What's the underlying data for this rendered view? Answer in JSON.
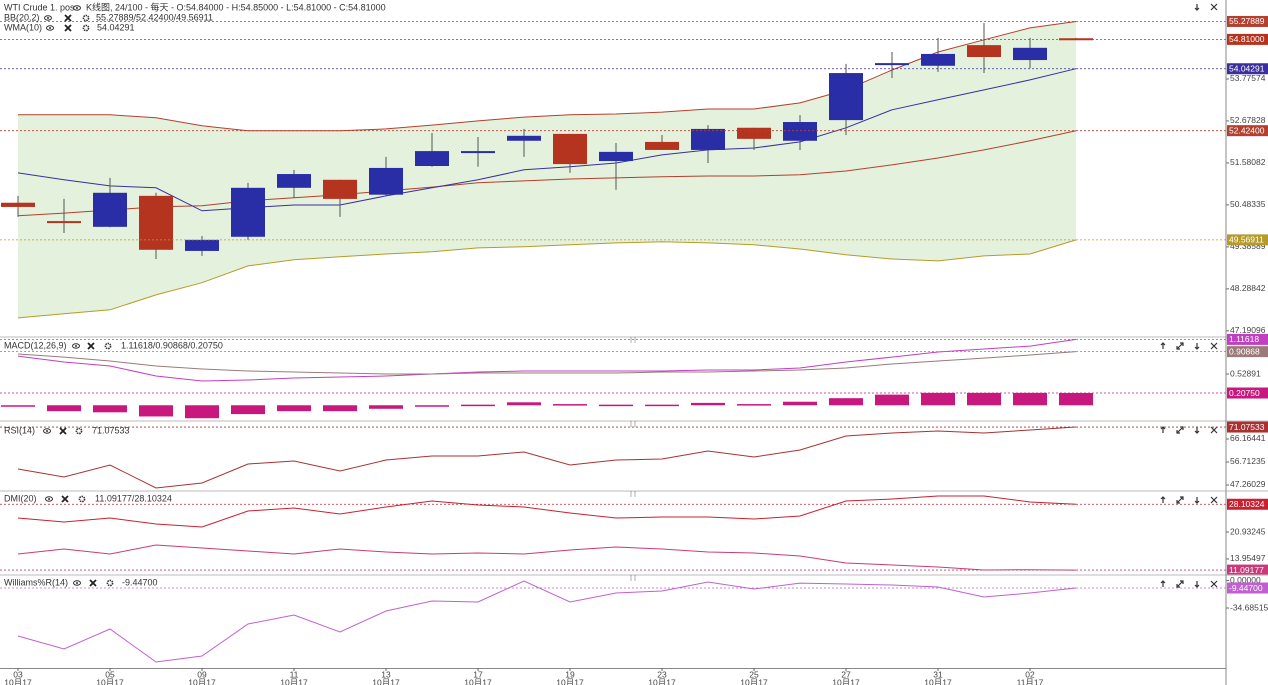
{
  "chart_data": [
    {
      "type": "candlestick",
      "title": "WTI Crude 1. pos",
      "subtitle": "K线图, 24/100 - 每天 - O:54.84000 - H:54.85000 - L:54.81000 - C:54.81000",
      "categories": [
        "03",
        null,
        "05",
        null,
        "09",
        null,
        "11",
        null,
        "13",
        null,
        "17",
        null,
        "19",
        null,
        "23",
        null,
        "25",
        null,
        "27",
        null,
        "31",
        null,
        "02",
        null
      ],
      "category_months": [
        "10月17",
        null,
        "10月17",
        null,
        "10月17",
        null,
        "10月17",
        null,
        "10月17",
        null,
        "10月17",
        null,
        "10月17",
        null,
        "10月17",
        null,
        "10月17",
        null,
        "10月17",
        null,
        "10月17",
        null,
        "11月17",
        null
      ],
      "open": [
        50.54,
        50.06,
        49.91,
        50.72,
        49.28,
        49.65,
        50.93,
        51.14,
        50.75,
        51.5,
        51.84,
        52.16,
        52.34,
        51.63,
        52.13,
        51.92,
        52.5,
        52.16,
        52.7,
        54.14,
        54.12,
        54.66,
        54.27,
        54.84
      ],
      "high": [
        50.72,
        50.64,
        51.19,
        50.8,
        49.67,
        51.06,
        51.4,
        51.14,
        51.74,
        52.36,
        52.26,
        52.47,
        52.34,
        52.1,
        52.31,
        52.57,
        52.5,
        52.83,
        54.17,
        54.48,
        54.85,
        55.24,
        54.85,
        54.85
      ],
      "low": [
        50.17,
        49.75,
        49.9,
        49.07,
        49.15,
        49.57,
        50.67,
        50.17,
        50.72,
        51.48,
        51.48,
        51.74,
        51.32,
        50.88,
        51.92,
        51.58,
        51.92,
        51.92,
        52.31,
        53.8,
        53.96,
        53.93,
        54.06,
        54.81
      ],
      "close": [
        50.43,
        50.02,
        50.8,
        49.31,
        49.57,
        50.93,
        51.29,
        50.64,
        51.45,
        51.89,
        51.89,
        52.29,
        51.55,
        51.87,
        51.92,
        52.47,
        52.21,
        52.65,
        53.93,
        54.19,
        54.43,
        54.35,
        54.59,
        54.81
      ],
      "close_label": "54.81000",
      "up_color": "#2a2ea6",
      "down_color": "#b5341f",
      "ylim": [
        47.03,
        55.84
      ],
      "yticks": [
        53.77574,
        52.67828,
        51.58082,
        50.48335,
        49.38589,
        48.28842,
        47.19096
      ],
      "indicators": [
        {
          "name": "BB(20,2)",
          "values_label": "55.27889/52.42400/49.56911",
          "color": "#a0702a",
          "fill": "#e4f1dc",
          "series": [
            {
              "color": "#b3402f",
              "last_label": "55.27889",
              "values": [
                52.84,
                52.84,
                52.84,
                52.76,
                52.55,
                52.42,
                52.42,
                52.42,
                52.47,
                52.57,
                52.68,
                52.78,
                52.84,
                52.86,
                52.91,
                52.99,
                52.99,
                53.15,
                53.49,
                54.01,
                54.48,
                54.8,
                55.11,
                55.27889
              ]
            },
            {
              "color": "#b3402f",
              "last_label": "52.42400",
              "values": [
                50.2,
                50.27,
                50.35,
                50.43,
                50.46,
                50.59,
                50.67,
                50.75,
                50.85,
                50.95,
                51.06,
                51.11,
                51.16,
                51.19,
                51.22,
                51.24,
                51.24,
                51.27,
                51.37,
                51.53,
                51.71,
                51.92,
                52.16,
                52.424
              ]
            },
            {
              "color": "#b59b2a",
              "last_label": "49.56911",
              "values": [
                47.53,
                47.64,
                47.74,
                48.13,
                48.45,
                48.89,
                49.05,
                49.13,
                49.2,
                49.26,
                49.36,
                49.39,
                49.44,
                49.49,
                49.52,
                49.49,
                49.44,
                49.33,
                49.18,
                49.07,
                49.02,
                49.15,
                49.2,
                49.56911
              ]
            }
          ]
        },
        {
          "name": "WMA(10)",
          "values_label": "54.04291",
          "color": "#5030b0",
          "series": [
            {
              "color": "#3b2f9e",
              "last_label": "54.04291",
              "values": [
                51.32,
                51.14,
                50.98,
                50.93,
                50.33,
                50.41,
                50.48,
                50.48,
                50.72,
                50.93,
                51.14,
                51.4,
                51.48,
                51.58,
                51.79,
                51.92,
                51.97,
                52.13,
                52.5,
                52.97,
                53.23,
                53.49,
                53.75,
                54.04291
              ]
            }
          ]
        }
      ]
    },
    {
      "type": "line",
      "ylim": [
        -0.25,
        1.14
      ],
      "yticks": [
        0.52891
      ],
      "indicators": [
        {
          "name": "MACD(12,26,9)",
          "values_label": "1.11618/0.90868/0.20750",
          "color": "#d04090",
          "series": [
            {
              "color": "#c23fc2",
              "last_label": "1.11618",
              "values": [
                0.834,
                0.733,
                0.665,
                0.496,
                0.411,
                0.428,
                0.462,
                0.479,
                0.496,
                0.53,
                0.563,
                0.58,
                0.58,
                0.58,
                0.58,
                0.597,
                0.597,
                0.631,
                0.733,
                0.817,
                0.902,
                0.953,
                1.003,
                1.11618
              ]
            },
            {
              "color": "#9c7a7a",
              "last_label": "0.90868",
              "values": [
                0.868,
                0.817,
                0.75,
                0.665,
                0.614,
                0.58,
                0.563,
                0.546,
                0.53,
                0.53,
                0.546,
                0.546,
                0.546,
                0.546,
                0.563,
                0.563,
                0.58,
                0.597,
                0.631,
                0.699,
                0.75,
                0.8,
                0.851,
                0.90868
              ]
            },
            {
              "kind": "bar",
              "color": "#c8187e",
              "last_label": "0.20750",
              "values": [
                -0.02,
                -0.1,
                -0.12,
                -0.19,
                -0.22,
                -0.15,
                -0.1,
                -0.1,
                -0.06,
                -0.01,
                0.01,
                0.05,
                0.02,
                0.01,
                0.01,
                0.04,
                0.02,
                0.06,
                0.12,
                0.18,
                0.21,
                0.21,
                0.21,
                0.2075
              ]
            }
          ]
        }
      ]
    },
    {
      "type": "line",
      "ylim": [
        45.2,
        73.15
      ],
      "yticks": [
        66.16441,
        56.71235,
        47.26029
      ],
      "indicators": [
        {
          "name": "RSI(14)",
          "values_label": "71.07533",
          "color": "#c03030",
          "series": [
            {
              "color": "#a83232",
              "last_label": "71.07533",
              "values": [
                53.84,
                50.55,
                55.48,
                46.03,
                48.08,
                55.89,
                57.12,
                53.01,
                57.54,
                59.18,
                59.18,
                60.82,
                55.48,
                57.54,
                57.95,
                61.23,
                58.77,
                61.65,
                67.4,
                68.63,
                69.45,
                68.63,
                69.87,
                71.07533
              ]
            }
          ]
        }
      ]
    },
    {
      "type": "line",
      "ylim": [
        9.82,
        31.27
      ],
      "yticks": [
        20.93245,
        13.95497
      ],
      "indicators": [
        {
          "name": "DMI(20)",
          "values_label": "11.09177/28.10324",
          "color": "#c82030",
          "series": [
            {
              "color": "#c83a78",
              "last_label": "11.09177",
              "values": [
                15.25,
                16.54,
                15.25,
                17.57,
                16.8,
                16.02,
                15.25,
                16.54,
                15.76,
                15.25,
                15.51,
                15.25,
                16.28,
                17.06,
                16.54,
                15.76,
                15.51,
                14.73,
                12.92,
                12.4,
                11.89,
                11.11,
                11.2,
                11.09177
              ]
            },
            {
              "color": "#c82030",
              "last_label": "28.10324",
              "values": [
                24.55,
                23.52,
                24.55,
                23.0,
                22.22,
                26.36,
                27.13,
                25.58,
                27.39,
                28.94,
                27.91,
                27.39,
                25.84,
                24.55,
                24.81,
                24.81,
                24.29,
                25.07,
                28.94,
                29.46,
                30.24,
                30.24,
                28.68,
                28.10324
              ]
            }
          ]
        }
      ]
    },
    {
      "type": "line",
      "ylim": [
        -110.4,
        5.7
      ],
      "yticks": [
        {
          "value": 0,
          "label": "0.00000"
        },
        -34.68515
      ],
      "indicators": [
        {
          "name": "Williams%R(14)",
          "values_label": "-9.44700",
          "color": "#b050c8",
          "series": [
            {
              "color": "#c060d0",
              "last_label": "-9.44700",
              "values": [
                -70.0,
                -86.4,
                -61.2,
                -102.8,
                -95.3,
                -54.9,
                -43.5,
                -65.0,
                -38.5,
                -25.9,
                -27.1,
                -0.6,
                -27.1,
                -15.8,
                -13.2,
                -1.9,
                -10.7,
                -3.2,
                -4.4,
                -5.7,
                -8.2,
                -20.8,
                -15.8,
                -9.447
              ]
            }
          ]
        }
      ]
    }
  ]
}
